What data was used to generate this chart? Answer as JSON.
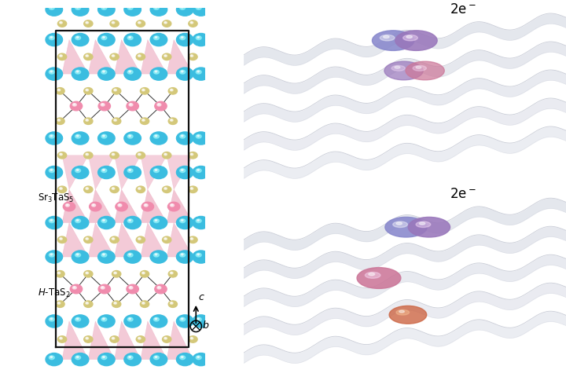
{
  "background_color": "#ffffff",
  "sr_color": "#3bbde0",
  "ta_color": "#f08cad",
  "s_color": "#d4c87a",
  "polyhedra_color": "#e896b0",
  "bond_color": "#333333",
  "box_color": "#111111",
  "label_sr3tas5": "Sr$_3$TaS$_5$",
  "label_htas2": "$\\it{H}$-TaS$_2$",
  "label_2e_top": "2e$^-$",
  "label_2e_bottom": "2e$^-$",
  "wave_color": "#dcdfe8",
  "wave_edge_color": "#c0c4d0",
  "electron_blue": "#8888cc",
  "electron_purple": "#9977bb",
  "electron_pink": "#cc7799",
  "electron_orange": "#cc6644"
}
